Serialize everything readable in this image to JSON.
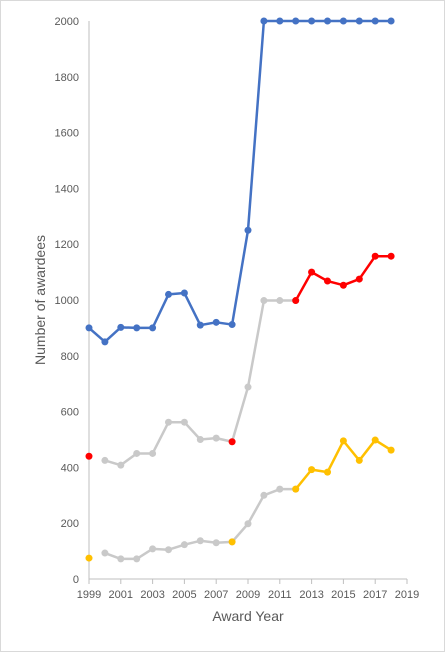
{
  "chart_data": {
    "type": "line",
    "xlabel": "Award Year",
    "ylabel": "Number of awardees",
    "xlim": [
      1999,
      2019
    ],
    "ylim": [
      0,
      2000
    ],
    "x_ticks": [
      1999,
      2001,
      2003,
      2005,
      2007,
      2009,
      2011,
      2013,
      2015,
      2017,
      2019
    ],
    "y_ticks": [
      0,
      200,
      400,
      600,
      800,
      1000,
      1200,
      1400,
      1600,
      1800,
      2000
    ],
    "grid": false,
    "legend": "none",
    "series": [
      {
        "color": "#4472c4",
        "points": [
          [
            1999,
            900
          ],
          [
            2000,
            850
          ],
          [
            2001,
            902
          ],
          [
            2002,
            900
          ],
          [
            2003,
            900
          ],
          [
            2004,
            1020
          ],
          [
            2005,
            1025
          ],
          [
            2006,
            910
          ],
          [
            2007,
            920
          ],
          [
            2008,
            912
          ],
          [
            2009,
            1250
          ],
          [
            2010,
            2000
          ],
          [
            2011,
            2000
          ],
          [
            2012,
            2000
          ],
          [
            2013,
            2000
          ],
          [
            2014,
            2000
          ],
          [
            2015,
            2000
          ],
          [
            2016,
            2000
          ],
          [
            2017,
            2000
          ],
          [
            2018,
            2000
          ]
        ]
      },
      {
        "color": "#c9c9c9",
        "points": [
          [
            2000,
            425
          ],
          [
            2001,
            408
          ],
          [
            2002,
            450
          ],
          [
            2003,
            450
          ],
          [
            2004,
            562
          ],
          [
            2005,
            562
          ],
          [
            2006,
            500
          ],
          [
            2007,
            505
          ],
          [
            2008,
            492
          ],
          [
            2009,
            688
          ],
          [
            2010,
            998
          ],
          [
            2011,
            998
          ],
          [
            2012,
            998
          ]
        ]
      },
      {
        "color": "#ff0000",
        "points": [
          [
            1999,
            440
          ],
          [
            2008,
            492
          ],
          [
            2012,
            998
          ],
          [
            2013,
            1100
          ],
          [
            2014,
            1068
          ],
          [
            2015,
            1053
          ],
          [
            2016,
            1075
          ],
          [
            2017,
            1157
          ],
          [
            2018,
            1157
          ]
        ]
      },
      {
        "color": "#c9c9c9",
        "points": [
          [
            2000,
            93
          ],
          [
            2001,
            72
          ],
          [
            2002,
            72
          ],
          [
            2003,
            108
          ],
          [
            2004,
            105
          ],
          [
            2005,
            123
          ],
          [
            2006,
            137
          ],
          [
            2007,
            130
          ],
          [
            2008,
            133
          ],
          [
            2009,
            198
          ],
          [
            2010,
            300
          ],
          [
            2011,
            322
          ],
          [
            2012,
            322
          ]
        ]
      },
      {
        "color": "#ffc000",
        "points": [
          [
            1999,
            75
          ],
          [
            2008,
            133
          ],
          [
            2012,
            322
          ],
          [
            2013,
            392
          ],
          [
            2014,
            383
          ],
          [
            2015,
            495
          ],
          [
            2016,
            425
          ],
          [
            2017,
            498
          ],
          [
            2018,
            462
          ]
        ]
      }
    ]
  }
}
